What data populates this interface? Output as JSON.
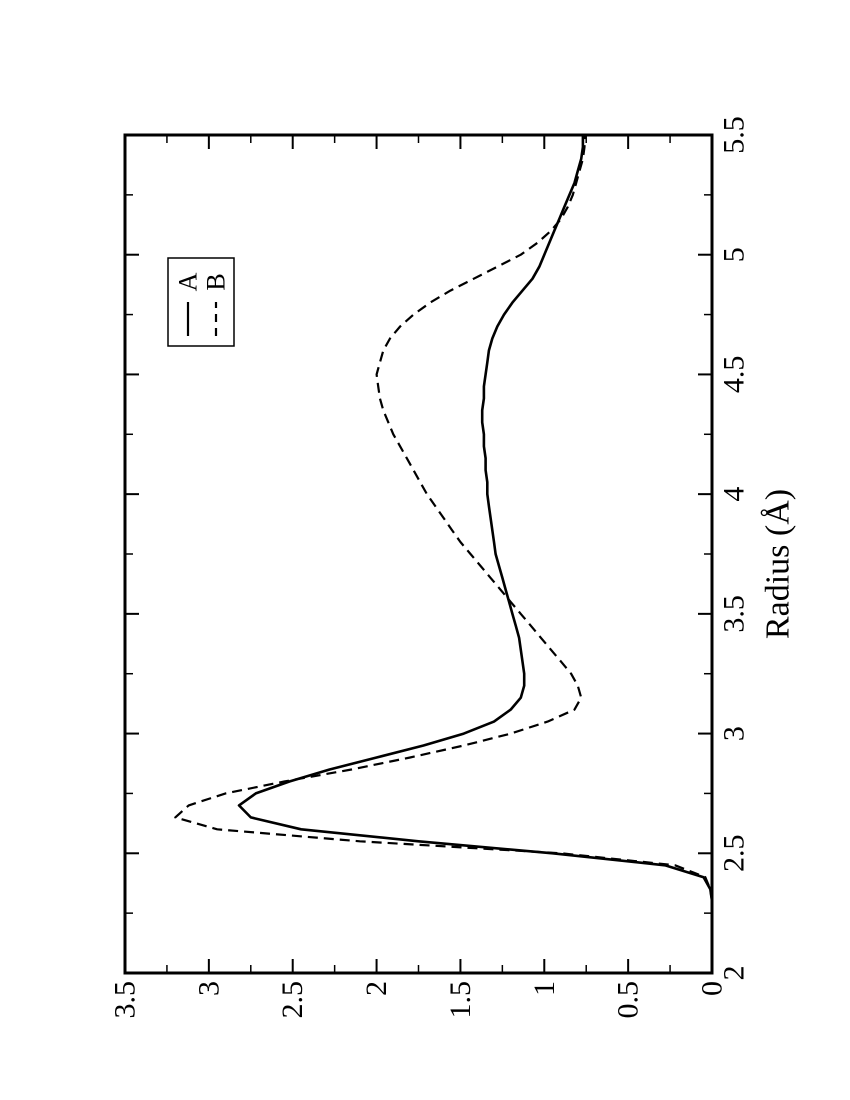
{
  "chart_data": {
    "type": "line",
    "title": "",
    "xlabel": "Radius (Å)",
    "ylabel": "",
    "xlim": [
      2,
      5.5
    ],
    "ylim": [
      0,
      3.5
    ],
    "x_ticks": [
      "2",
      "2.5",
      "3",
      "3.5",
      "4",
      "4.5",
      "5",
      "5.5"
    ],
    "y_ticks": [
      "0",
      "0.5",
      "1",
      "1.5",
      "2",
      "2.5",
      "3",
      "3.5"
    ],
    "grid": false,
    "legend_position": "top-left",
    "orientation": "rotated-90-ccw",
    "series": [
      {
        "name": "A",
        "style": "solid",
        "x": [
          2.3,
          2.35,
          2.4,
          2.45,
          2.5,
          2.55,
          2.6,
          2.65,
          2.7,
          2.75,
          2.8,
          2.85,
          2.9,
          2.95,
          3.0,
          3.05,
          3.1,
          3.15,
          3.2,
          3.25,
          3.3,
          3.35,
          3.4,
          3.45,
          3.5,
          3.55,
          3.6,
          3.65,
          3.7,
          3.75,
          3.8,
          3.85,
          3.9,
          3.95,
          4.0,
          4.05,
          4.1,
          4.15,
          4.2,
          4.25,
          4.3,
          4.35,
          4.4,
          4.45,
          4.5,
          4.55,
          4.6,
          4.65,
          4.7,
          4.75,
          4.8,
          4.85,
          4.9,
          4.95,
          5.0,
          5.05,
          5.1,
          5.15,
          5.2,
          5.25,
          5.3,
          5.35,
          5.4,
          5.45,
          5.5
        ],
        "y": [
          0.0,
          0.01,
          0.05,
          0.28,
          0.95,
          1.75,
          2.45,
          2.75,
          2.82,
          2.72,
          2.52,
          2.28,
          2.0,
          1.72,
          1.48,
          1.3,
          1.2,
          1.14,
          1.12,
          1.12,
          1.13,
          1.14,
          1.15,
          1.17,
          1.19,
          1.21,
          1.23,
          1.25,
          1.27,
          1.29,
          1.3,
          1.31,
          1.32,
          1.33,
          1.34,
          1.34,
          1.35,
          1.35,
          1.36,
          1.36,
          1.37,
          1.37,
          1.36,
          1.36,
          1.35,
          1.34,
          1.33,
          1.31,
          1.28,
          1.24,
          1.19,
          1.13,
          1.07,
          1.03,
          1.0,
          0.97,
          0.94,
          0.91,
          0.88,
          0.85,
          0.82,
          0.8,
          0.78,
          0.77,
          0.77
        ]
      },
      {
        "name": "B",
        "style": "dashed",
        "x": [
          2.3,
          2.35,
          2.4,
          2.45,
          2.5,
          2.55,
          2.6,
          2.65,
          2.7,
          2.75,
          2.8,
          2.85,
          2.9,
          2.95,
          3.0,
          3.05,
          3.1,
          3.15,
          3.2,
          3.25,
          3.3,
          3.35,
          3.4,
          3.45,
          3.5,
          3.55,
          3.6,
          3.65,
          3.7,
          3.75,
          3.8,
          3.85,
          3.9,
          3.95,
          4.0,
          4.05,
          4.1,
          4.15,
          4.2,
          4.25,
          4.3,
          4.35,
          4.4,
          4.45,
          4.5,
          4.55,
          4.6,
          4.65,
          4.7,
          4.75,
          4.8,
          4.85,
          4.9,
          4.95,
          5.0,
          5.05,
          5.1,
          5.15,
          5.2,
          5.25,
          5.3,
          5.35,
          5.4,
          5.45,
          5.5
        ],
        "y": [
          0.0,
          0.01,
          0.04,
          0.22,
          0.9,
          2.1,
          2.95,
          3.2,
          3.12,
          2.9,
          2.55,
          2.15,
          1.8,
          1.48,
          1.2,
          0.98,
          0.82,
          0.78,
          0.8,
          0.84,
          0.9,
          0.96,
          1.02,
          1.08,
          1.14,
          1.2,
          1.26,
          1.32,
          1.38,
          1.44,
          1.5,
          1.55,
          1.6,
          1.65,
          1.7,
          1.74,
          1.78,
          1.82,
          1.86,
          1.9,
          1.93,
          1.96,
          1.98,
          1.99,
          2.0,
          1.98,
          1.96,
          1.92,
          1.86,
          1.78,
          1.68,
          1.56,
          1.42,
          1.28,
          1.14,
          1.04,
          0.96,
          0.9,
          0.86,
          0.83,
          0.81,
          0.79,
          0.77,
          0.76,
          0.76
        ]
      }
    ]
  }
}
